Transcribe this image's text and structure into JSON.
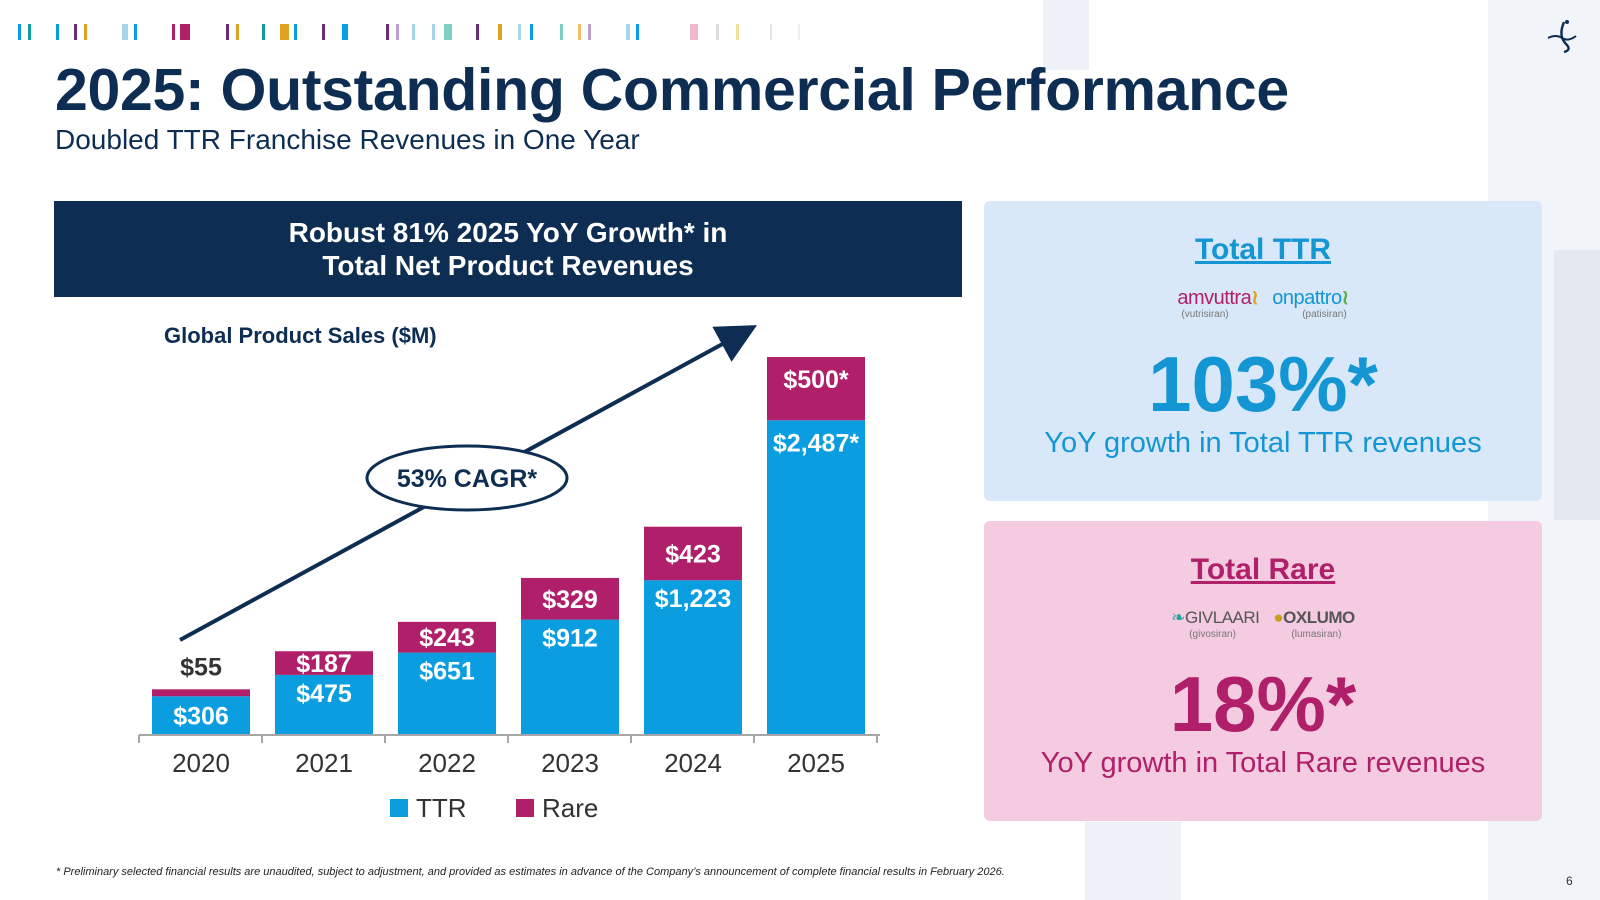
{
  "header": {
    "title": "2025: Outstanding Commercial Performance",
    "subtitle": "Doubled TTR Franchise Revenues in One Year"
  },
  "chart_banner": {
    "line1": "Robust 81% 2025 YoY Growth* in",
    "line2": "Total Net Product Revenues"
  },
  "chart_data": {
    "type": "bar",
    "stacked": true,
    "title": "Global Product Sales ($M)",
    "categories": [
      "2020",
      "2021",
      "2022",
      "2023",
      "2024",
      "2025"
    ],
    "series": [
      {
        "name": "TTR",
        "color": "#0a9ee0",
        "values": [
          306,
          475,
          651,
          912,
          1223,
          2487
        ],
        "labels": [
          "$306",
          "$475",
          "$651",
          "$912",
          "$1,223",
          "$2,487*"
        ]
      },
      {
        "name": "Rare",
        "color": "#b0206a",
        "values": [
          55,
          187,
          243,
          329,
          423,
          500
        ],
        "labels": [
          "$55",
          "$187",
          "$243",
          "$329",
          "$423",
          "$500*"
        ]
      }
    ],
    "annotation": "53% CAGR*",
    "legend_position": "bottom",
    "grid": false
  },
  "panels": {
    "ttr": {
      "title": "Total TTR",
      "brands": [
        {
          "name": "amvuttra",
          "generic": "(vutrisiran)",
          "color": "#b0206a",
          "icon": "dna-icon"
        },
        {
          "name": "onpattro",
          "generic": "(patisiran)",
          "color": "#1596d4",
          "icon": "dna-icon"
        }
      ],
      "value": "103%*",
      "description": "YoY growth in Total TTR revenues"
    },
    "rare": {
      "title": "Total Rare",
      "brands": [
        {
          "name": "GIVLAARI",
          "generic": "(givosiran)",
          "color": "#555555",
          "icon": "leaf-icon"
        },
        {
          "name": "OXLUMO",
          "generic": "(lumasiran)",
          "color": "#555555",
          "icon": "orb-icon"
        }
      ],
      "value": "18%*",
      "description": "YoY growth in Total Rare revenues"
    }
  },
  "footnote": "* Preliminary selected financial results are unaudited, subject to adjustment, and provided as estimates in advance of the Company’s announcement of complete financial results in February 2026.",
  "page_number": "6",
  "colors": {
    "navy": "#0e2d52",
    "ttr_blue": "#0a9ee0",
    "rare_magenta": "#b0206a"
  }
}
